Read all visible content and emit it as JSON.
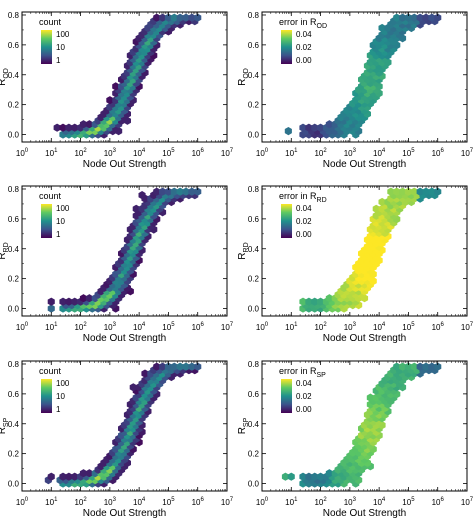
{
  "shared": {
    "xlabel": "Node Out Strength",
    "xlabel_bottom": "Node Out Strength",
    "x_ticks": [
      {
        "base": "10",
        "exp": "0"
      },
      {
        "base": "10",
        "exp": "1"
      },
      {
        "base": "10",
        "exp": "2"
      },
      {
        "base": "10",
        "exp": "3"
      },
      {
        "base": "10",
        "exp": "4"
      },
      {
        "base": "10",
        "exp": "5"
      },
      {
        "base": "10",
        "exp": "6"
      },
      {
        "base": "10",
        "exp": "7"
      }
    ],
    "y_ticks": [
      "0.0",
      "0.2",
      "0.4",
      "0.6",
      "0.8"
    ],
    "count_ticks": [
      "100",
      "10",
      "1"
    ],
    "error_ticks": [
      "0.04",
      "0.02",
      "0.00"
    ]
  },
  "colormap": [
    "#440154",
    "#3b528b",
    "#21918c",
    "#5ec962",
    "#fde725"
  ],
  "chart_data": [
    {
      "id": "count-od",
      "type": "heatmap",
      "ylabel_main": "R",
      "ylabel_sub": "OD",
      "colorbar_title": "count",
      "colorbar_title_main": "count",
      "colorbar_title_sub": "",
      "x_scale": "log",
      "xlim": [
        1,
        10000000
      ],
      "ylim": [
        -0.05,
        0.82
      ],
      "color_scale": "log",
      "color_range": [
        1,
        200
      ]
    },
    {
      "id": "error-od",
      "type": "heatmap",
      "ylabel_main": "R",
      "ylabel_sub": "OD",
      "colorbar_title": "error in R_OD",
      "colorbar_title_main": "error in R",
      "colorbar_title_sub": "OD",
      "x_scale": "log",
      "xlim": [
        1,
        10000000
      ],
      "ylim": [
        -0.05,
        0.82
      ],
      "color_scale": "linear",
      "color_range": [
        0.0,
        0.045
      ],
      "error_level": 0.018
    },
    {
      "id": "count-rd",
      "type": "heatmap",
      "ylabel_main": "R",
      "ylabel_sub": "RD",
      "colorbar_title": "count",
      "colorbar_title_main": "count",
      "colorbar_title_sub": "",
      "x_scale": "log",
      "xlim": [
        1,
        10000000
      ],
      "ylim": [
        -0.05,
        0.82
      ],
      "color_scale": "log",
      "color_range": [
        1,
        200
      ]
    },
    {
      "id": "error-rd",
      "type": "heatmap",
      "ylabel_main": "R",
      "ylabel_sub": "RD",
      "colorbar_title": "error in R_RD",
      "colorbar_title_main": "error in R",
      "colorbar_title_sub": "RD",
      "x_scale": "log",
      "xlim": [
        1,
        10000000
      ],
      "ylim": [
        -0.05,
        0.82
      ],
      "color_scale": "linear",
      "color_range": [
        0.0,
        0.045
      ],
      "error_level": 0.038
    },
    {
      "id": "count-sp",
      "type": "heatmap",
      "ylabel_main": "R",
      "ylabel_sub": "SP",
      "colorbar_title": "count",
      "colorbar_title_main": "count",
      "colorbar_title_sub": "",
      "x_scale": "log",
      "xlim": [
        1,
        10000000
      ],
      "ylim": [
        -0.05,
        0.82
      ],
      "color_scale": "log",
      "color_range": [
        1,
        200
      ]
    },
    {
      "id": "error-sp",
      "type": "heatmap",
      "ylabel_main": "R",
      "ylabel_sub": "SP",
      "colorbar_title": "error in R_SP",
      "colorbar_title_main": "error in R",
      "colorbar_title_sub": "SP",
      "x_scale": "log",
      "xlim": [
        1,
        10000000
      ],
      "ylim": [
        -0.05,
        0.82
      ],
      "color_scale": "linear",
      "color_range": [
        0.0,
        0.045
      ],
      "error_level": 0.028
    }
  ]
}
